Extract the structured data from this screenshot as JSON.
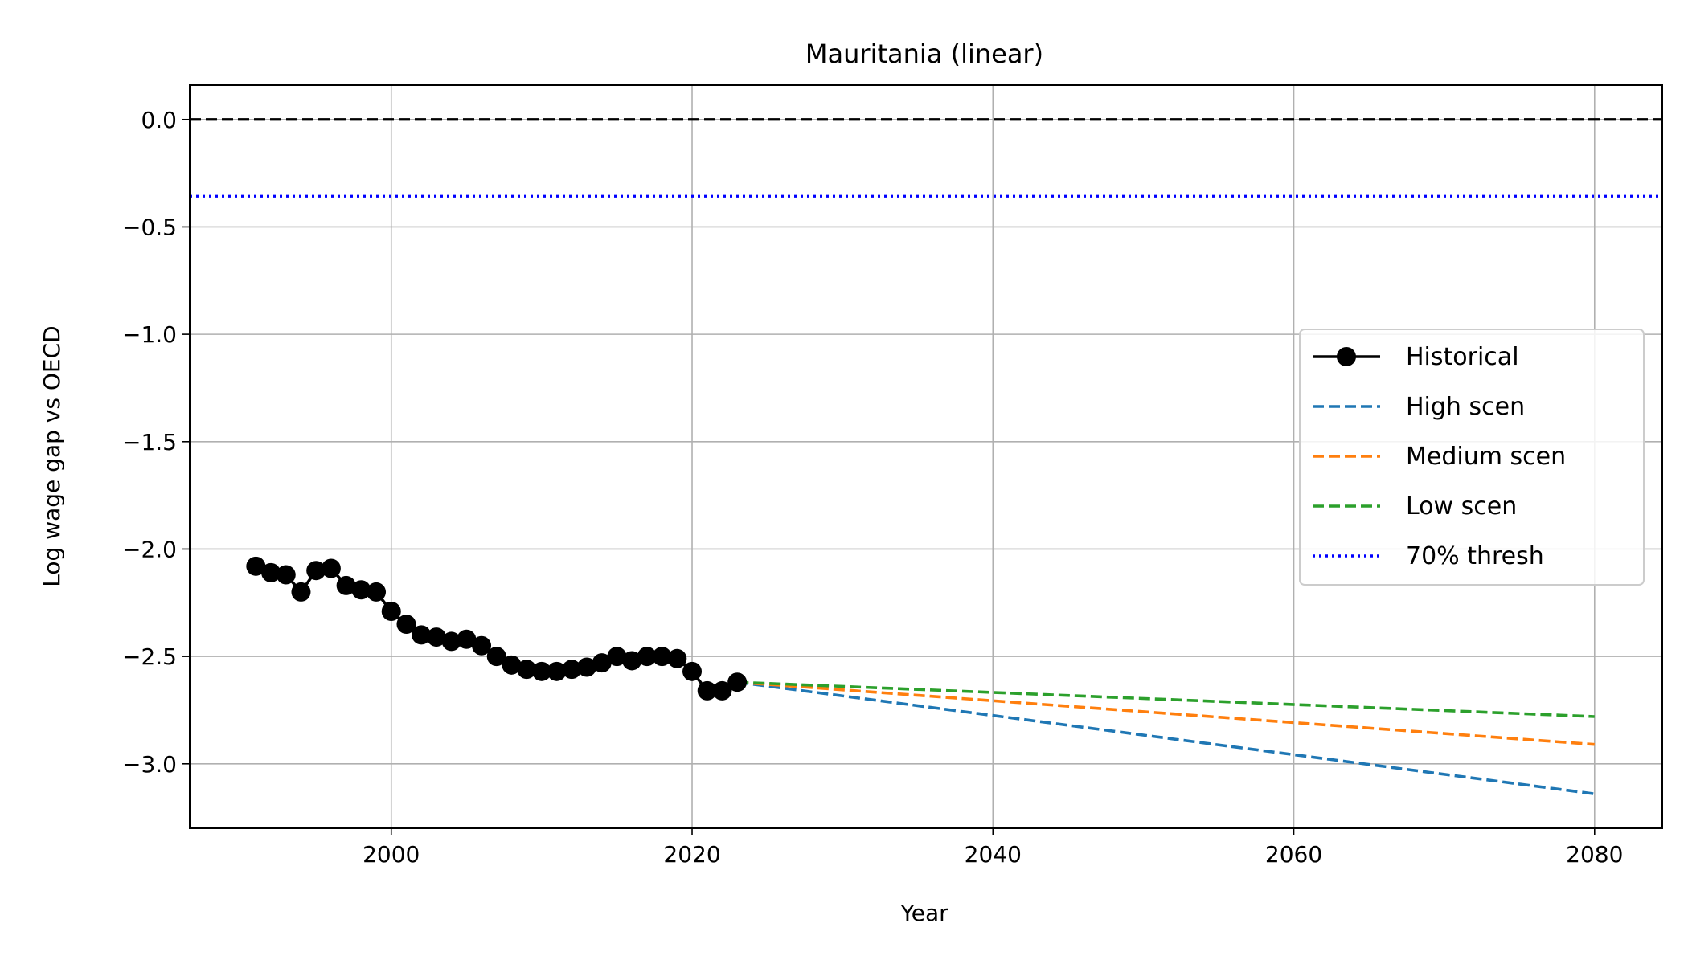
{
  "chart_data": {
    "type": "line",
    "title": "Mauritania (linear)",
    "xlabel": "Year",
    "ylabel": "Log wage gap vs OECD",
    "xlim": [
      1986.6,
      2084.5
    ],
    "ylim": [
      -3.3,
      0.16
    ],
    "xticks": [
      2000,
      2020,
      2040,
      2060,
      2080
    ],
    "yticks": [
      0.0,
      -0.5,
      -1.0,
      -1.5,
      -2.0,
      -2.5,
      -3.0
    ],
    "xtick_labels": [
      "2000",
      "2020",
      "2040",
      "2060",
      "2080"
    ],
    "ytick_labels": [
      "0.0",
      "−0.5",
      "−1.0",
      "−1.5",
      "−2.0",
      "−2.5",
      "−3.0"
    ],
    "grid": true,
    "legend_position": "center-right",
    "reference_lines": [
      {
        "y": 0.0,
        "color": "#000000",
        "style": "dashed"
      },
      {
        "y": -0.357,
        "color": "#0000ff",
        "style": "dotted"
      }
    ],
    "series": [
      {
        "name": "Historical",
        "color": "#000000",
        "style": "solid-marker",
        "x": [
          1991,
          1992,
          1993,
          1994,
          1995,
          1996,
          1997,
          1998,
          1999,
          2000,
          2001,
          2002,
          2003,
          2004,
          2005,
          2006,
          2007,
          2008,
          2009,
          2010,
          2011,
          2012,
          2013,
          2014,
          2015,
          2016,
          2017,
          2018,
          2019,
          2020,
          2021,
          2022,
          2023
        ],
        "y": [
          -2.08,
          -2.11,
          -2.12,
          -2.2,
          -2.1,
          -2.09,
          -2.17,
          -2.19,
          -2.2,
          -2.29,
          -2.35,
          -2.4,
          -2.41,
          -2.43,
          -2.42,
          -2.45,
          -2.5,
          -2.54,
          -2.56,
          -2.57,
          -2.57,
          -2.56,
          -2.55,
          -2.53,
          -2.5,
          -2.52,
          -2.5,
          -2.5,
          -2.51,
          -2.57,
          -2.66,
          -2.66,
          -2.62
        ]
      },
      {
        "name": "High scen",
        "color": "#1f77b4",
        "style": "dashed",
        "x": [
          2023,
          2080
        ],
        "y": [
          -2.62,
          -3.14
        ]
      },
      {
        "name": "Medium scen",
        "color": "#ff7f0e",
        "style": "dashed",
        "x": [
          2023,
          2080
        ],
        "y": [
          -2.62,
          -2.91
        ]
      },
      {
        "name": "Low scen",
        "color": "#2ca02c",
        "style": "dashed",
        "x": [
          2023,
          2080
        ],
        "y": [
          -2.62,
          -2.78
        ]
      }
    ],
    "legend": [
      "Historical",
      "High scen",
      "Medium scen",
      "Low scen",
      "70% thresh"
    ]
  }
}
